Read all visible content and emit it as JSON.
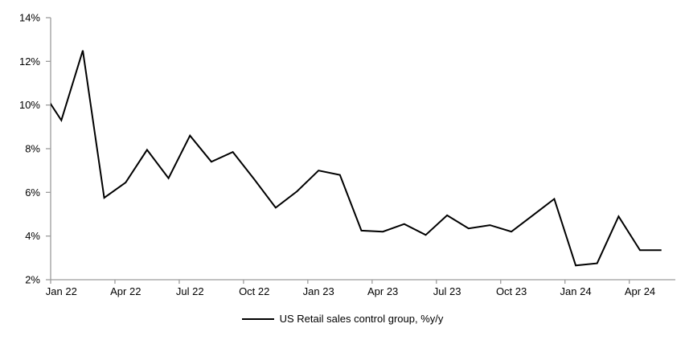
{
  "chart_data": {
    "type": "line",
    "title": "",
    "xlabel": "",
    "ylabel": "",
    "ylim": [
      2,
      14
    ],
    "ytick_step": 2,
    "ytick_suffix": "%",
    "grid": false,
    "legend_position": "bottom",
    "axis_color": "#9c9c9c",
    "text_color": "#000000",
    "points_before_axis": 1,
    "xtick_every": 3,
    "xtick_labels": [
      "Jan 22",
      "Apr 22",
      "Jul 22",
      "Oct 22",
      "Jan 23",
      "Apr 23",
      "Jul 23",
      "Oct 23",
      "Jan 24",
      "Apr 24"
    ],
    "x": [
      "Dec 21",
      "Jan 22",
      "Feb 22",
      "Mar 22",
      "Apr 22",
      "May 22",
      "Jun 22",
      "Jul 22",
      "Aug 22",
      "Sep 22",
      "Oct 22",
      "Nov 22",
      "Dec 22",
      "Jan 23",
      "Feb 23",
      "Mar 23",
      "Apr 23",
      "May 23",
      "Jun 23",
      "Jul 23",
      "Aug 23",
      "Sep 23",
      "Oct 23",
      "Nov 23",
      "Dec 23",
      "Jan 24",
      "Feb 24",
      "Mar 24",
      "Apr 24",
      "May 24"
    ],
    "series": [
      {
        "name": "US Retail sales control group, %y/y",
        "color": "#000000",
        "values": [
          10.8,
          9.3,
          12.5,
          5.75,
          6.45,
          7.95,
          6.65,
          8.6,
          7.4,
          7.85,
          6.6,
          5.3,
          6.05,
          7.0,
          6.8,
          4.25,
          4.2,
          4.55,
          4.05,
          4.95,
          4.35,
          4.5,
          4.2,
          4.95,
          5.7,
          2.65,
          2.75,
          4.9,
          3.35,
          3.35
        ]
      }
    ]
  }
}
